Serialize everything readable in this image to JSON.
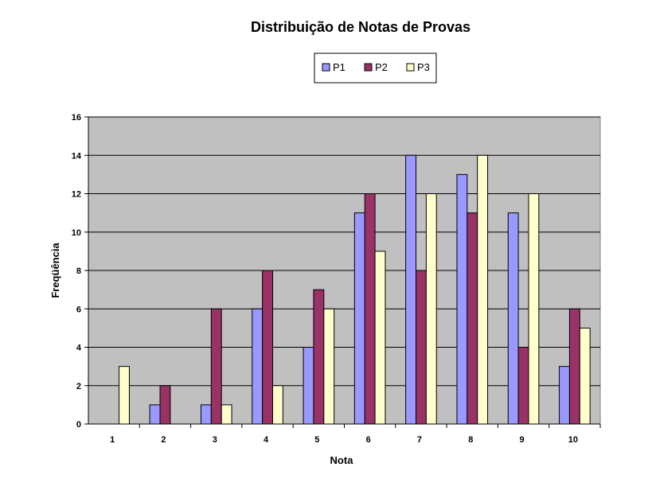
{
  "chart_data": {
    "type": "bar",
    "title": "Distribuição de Notas de Provas",
    "xlabel": "Nota",
    "ylabel": "Freqüência",
    "categories": [
      "1",
      "2",
      "3",
      "4",
      "5",
      "6",
      "7",
      "8",
      "9",
      "10"
    ],
    "series": [
      {
        "name": "P1",
        "color": "#9999ff",
        "values": [
          0,
          1,
          1,
          6,
          4,
          11,
          14,
          13,
          11,
          3
        ]
      },
      {
        "name": "P2",
        "color": "#993366",
        "values": [
          0,
          2,
          6,
          8,
          7,
          12,
          8,
          11,
          4,
          6
        ]
      },
      {
        "name": "P3",
        "color": "#ffffcc",
        "values": [
          3,
          0,
          1,
          2,
          6,
          9,
          12,
          14,
          12,
          5
        ]
      }
    ],
    "ylim": [
      0,
      16
    ],
    "yticks": [
      "0",
      "2",
      "4",
      "6",
      "8",
      "10",
      "12",
      "14",
      "16"
    ],
    "grid": true,
    "legend": "top-center",
    "plot_background": "#c0c0c0"
  }
}
